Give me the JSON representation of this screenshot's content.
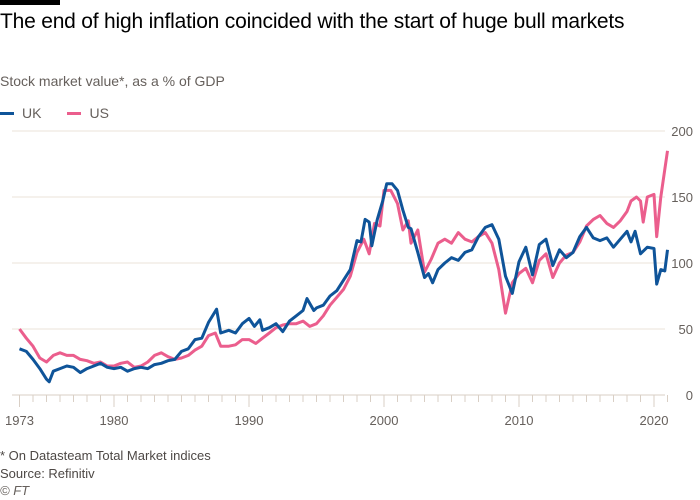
{
  "title": "The end of high inflation coincided with the start of huge bull markets",
  "subtitle": "Stock market value*, as a % of GDP",
  "footnote": "* On Datasteam Total Market indices",
  "source": "Source: Refinitiv",
  "copyright": "© FT",
  "chart_data": {
    "type": "line",
    "title": "The end of high inflation coincided with the start of huge bull markets",
    "ylabel": "",
    "xlabel": "",
    "xlim": [
      1973,
      2021
    ],
    "ylim": [
      0,
      200
    ],
    "x_ticks": [
      "1973",
      "1980",
      "1990",
      "2000",
      "2010",
      "2020"
    ],
    "y_ticks": [
      "0",
      "50",
      "100",
      "150",
      "200"
    ],
    "grid": true,
    "legend_placement": "top-left",
    "series": [
      {
        "name": "UK",
        "color": "#0f5499",
        "points": [
          [
            1973,
            35
          ],
          [
            1973.5,
            33
          ],
          [
            1974,
            27
          ],
          [
            1974.5,
            20
          ],
          [
            1975,
            12
          ],
          [
            1975.2,
            10
          ],
          [
            1975.5,
            18
          ],
          [
            1976,
            20
          ],
          [
            1976.5,
            22
          ],
          [
            1977,
            21
          ],
          [
            1977.5,
            17
          ],
          [
            1978,
            20
          ],
          [
            1978.5,
            22
          ],
          [
            1979,
            24
          ],
          [
            1979.5,
            21
          ],
          [
            1980,
            20
          ],
          [
            1980.5,
            21
          ],
          [
            1981,
            18
          ],
          [
            1981.5,
            20
          ],
          [
            1982,
            21
          ],
          [
            1982.5,
            20
          ],
          [
            1983,
            23
          ],
          [
            1983.5,
            24
          ],
          [
            1984,
            26
          ],
          [
            1984.5,
            27
          ],
          [
            1985,
            33
          ],
          [
            1985.5,
            35
          ],
          [
            1986,
            42
          ],
          [
            1986.5,
            43
          ],
          [
            1987,
            55
          ],
          [
            1987.6,
            65
          ],
          [
            1987.9,
            47
          ],
          [
            1988.5,
            49
          ],
          [
            1989,
            47
          ],
          [
            1989.5,
            54
          ],
          [
            1990,
            58
          ],
          [
            1990.4,
            52
          ],
          [
            1990.8,
            57
          ],
          [
            1991,
            49
          ],
          [
            1991.5,
            51
          ],
          [
            1992,
            54
          ],
          [
            1992.5,
            48
          ],
          [
            1993,
            56
          ],
          [
            1993.5,
            60
          ],
          [
            1994,
            64
          ],
          [
            1994.3,
            73
          ],
          [
            1994.8,
            64
          ],
          [
            1995,
            66
          ],
          [
            1995.5,
            68
          ],
          [
            1996,
            75
          ],
          [
            1996.5,
            79
          ],
          [
            1997,
            87
          ],
          [
            1997.5,
            95
          ],
          [
            1998,
            117
          ],
          [
            1998.3,
            116
          ],
          [
            1998.6,
            133
          ],
          [
            1998.9,
            131
          ],
          [
            1999.1,
            113
          ],
          [
            1999.5,
            133
          ],
          [
            1999.9,
            147
          ],
          [
            2000.2,
            160
          ],
          [
            2000.6,
            160
          ],
          [
            2001,
            155
          ],
          [
            2001.4,
            140
          ],
          [
            2001.8,
            127
          ],
          [
            2002,
            126
          ],
          [
            2002.5,
            108
          ],
          [
            2003,
            89
          ],
          [
            2003.3,
            92
          ],
          [
            2003.6,
            85
          ],
          [
            2004,
            95
          ],
          [
            2004.5,
            100
          ],
          [
            2005,
            104
          ],
          [
            2005.5,
            102
          ],
          [
            2006,
            108
          ],
          [
            2006.5,
            110
          ],
          [
            2007,
            120
          ],
          [
            2007.5,
            127
          ],
          [
            2008,
            129
          ],
          [
            2008.5,
            118
          ],
          [
            2009,
            90
          ],
          [
            2009.5,
            77
          ],
          [
            2010,
            101
          ],
          [
            2010.5,
            112
          ],
          [
            2011,
            91
          ],
          [
            2011.5,
            114
          ],
          [
            2012,
            118
          ],
          [
            2012.5,
            98
          ],
          [
            2013,
            110
          ],
          [
            2013.5,
            104
          ],
          [
            2014,
            108
          ],
          [
            2014.5,
            120
          ],
          [
            2015,
            127
          ],
          [
            2015.5,
            119
          ],
          [
            2016,
            117
          ],
          [
            2016.5,
            119
          ],
          [
            2017,
            112
          ],
          [
            2017.5,
            118
          ],
          [
            2018,
            124
          ],
          [
            2018.3,
            116
          ],
          [
            2018.6,
            124
          ],
          [
            2019,
            107
          ],
          [
            2019.5,
            112
          ],
          [
            2020,
            111
          ],
          [
            2020.2,
            84
          ],
          [
            2020.5,
            95
          ],
          [
            2020.8,
            94
          ],
          [
            2021,
            110
          ]
        ]
      },
      {
        "name": "US",
        "color": "#eb5e8d",
        "points": [
          [
            1973,
            50
          ],
          [
            1973.5,
            43
          ],
          [
            1974,
            37
          ],
          [
            1974.5,
            28
          ],
          [
            1975,
            25
          ],
          [
            1975.5,
            30
          ],
          [
            1976,
            32
          ],
          [
            1976.5,
            30
          ],
          [
            1977,
            30
          ],
          [
            1977.5,
            27
          ],
          [
            1978,
            26
          ],
          [
            1978.5,
            24
          ],
          [
            1979,
            25
          ],
          [
            1979.5,
            22
          ],
          [
            1980,
            22
          ],
          [
            1980.5,
            24
          ],
          [
            1981,
            25
          ],
          [
            1981.5,
            21
          ],
          [
            1982,
            22
          ],
          [
            1982.5,
            25
          ],
          [
            1983,
            30
          ],
          [
            1983.5,
            32
          ],
          [
            1984,
            29
          ],
          [
            1984.5,
            27
          ],
          [
            1985,
            28
          ],
          [
            1985.5,
            30
          ],
          [
            1986,
            34
          ],
          [
            1986.5,
            37
          ],
          [
            1987,
            45
          ],
          [
            1987.5,
            47
          ],
          [
            1987.9,
            37
          ],
          [
            1988.5,
            37
          ],
          [
            1989,
            38
          ],
          [
            1989.5,
            42
          ],
          [
            1990,
            42
          ],
          [
            1990.5,
            39
          ],
          [
            1991,
            43
          ],
          [
            1991.5,
            47
          ],
          [
            1992,
            51
          ],
          [
            1992.5,
            53
          ],
          [
            1993,
            54
          ],
          [
            1993.5,
            54
          ],
          [
            1994,
            56
          ],
          [
            1994.5,
            52
          ],
          [
            1995,
            54
          ],
          [
            1995.5,
            60
          ],
          [
            1996,
            68
          ],
          [
            1996.5,
            74
          ],
          [
            1997,
            80
          ],
          [
            1997.5,
            90
          ],
          [
            1998,
            108
          ],
          [
            1998.5,
            118
          ],
          [
            1998.9,
            107
          ],
          [
            1999.3,
            130
          ],
          [
            1999.7,
            128
          ],
          [
            2000,
            155
          ],
          [
            2000.5,
            155
          ],
          [
            2001,
            145
          ],
          [
            2001.4,
            125
          ],
          [
            2001.8,
            132
          ],
          [
            2002,
            115
          ],
          [
            2002.5,
            125
          ],
          [
            2003,
            93
          ],
          [
            2003.5,
            103
          ],
          [
            2004,
            115
          ],
          [
            2004.5,
            118
          ],
          [
            2005,
            115
          ],
          [
            2005.5,
            123
          ],
          [
            2006,
            118
          ],
          [
            2006.5,
            116
          ],
          [
            2007,
            120
          ],
          [
            2007.5,
            123
          ],
          [
            2008,
            115
          ],
          [
            2008.5,
            95
          ],
          [
            2009,
            62
          ],
          [
            2009.5,
            85
          ],
          [
            2010,
            92
          ],
          [
            2010.5,
            96
          ],
          [
            2011,
            85
          ],
          [
            2011.5,
            102
          ],
          [
            2012,
            107
          ],
          [
            2012.5,
            89
          ],
          [
            2013,
            100
          ],
          [
            2013.5,
            106
          ],
          [
            2014,
            108
          ],
          [
            2014.5,
            116
          ],
          [
            2015,
            128
          ],
          [
            2015.5,
            133
          ],
          [
            2016,
            136
          ],
          [
            2016.5,
            130
          ],
          [
            2017,
            127
          ],
          [
            2017.5,
            132
          ],
          [
            2018,
            139
          ],
          [
            2018.3,
            147
          ],
          [
            2018.7,
            150
          ],
          [
            2019,
            147
          ],
          [
            2019.2,
            131
          ],
          [
            2019.5,
            150
          ],
          [
            2020,
            152
          ],
          [
            2020.2,
            120
          ],
          [
            2020.5,
            150
          ],
          [
            2021,
            185
          ]
        ]
      }
    ]
  }
}
